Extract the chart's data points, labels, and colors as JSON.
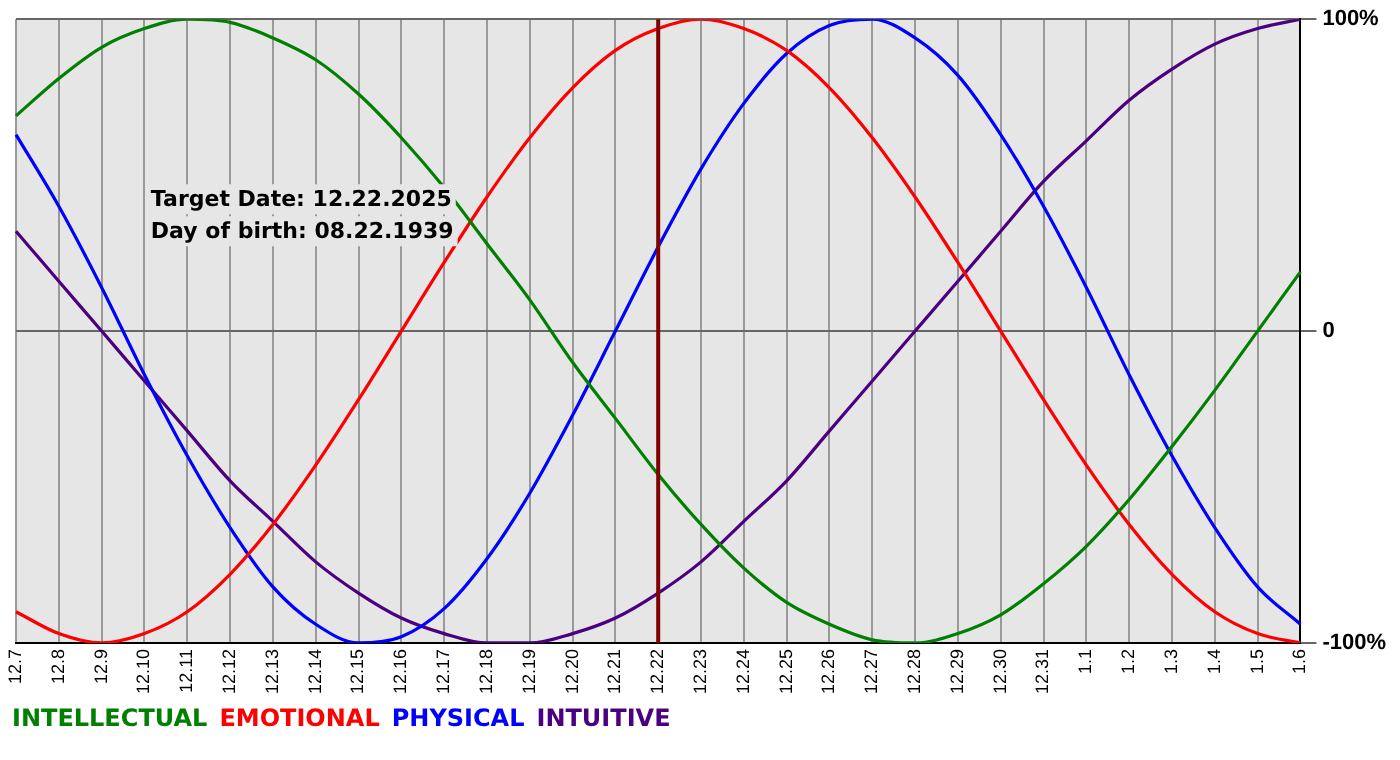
{
  "chart_data": {
    "type": "line",
    "categories": [
      "12.7",
      "12.8",
      "12.9",
      "12.10",
      "12.11",
      "12.12",
      "12.13",
      "12.14",
      "12.15",
      "12.16",
      "12.17",
      "12.18",
      "12.19",
      "12.20",
      "12.21",
      "12.22",
      "12.23",
      "12.24",
      "12.25",
      "12.26",
      "12.27",
      "12.28",
      "12.29",
      "12.30",
      "12.31",
      "1.1",
      "1.2",
      "1.3",
      "1.4",
      "1.5",
      "1.6"
    ],
    "series": [
      {
        "name": "INTELLECTUAL",
        "color": "#008000",
        "values": [
          69,
          81,
          91,
          97,
          100,
          99,
          94,
          87,
          76,
          62,
          46,
          28,
          10,
          -10,
          -28,
          -46,
          -62,
          -76,
          -87,
          -94,
          -99,
          -100,
          -97,
          -91,
          -81,
          -69,
          -54,
          -37,
          -19,
          0,
          19
        ]
      },
      {
        "name": "EMOTIONAL",
        "color": "#ff0000",
        "values": [
          -90,
          -97,
          -100,
          -97,
          -90,
          -78,
          -62,
          -43,
          -22,
          0,
          22,
          43,
          62,
          78,
          90,
          97,
          100,
          97,
          90,
          78,
          62,
          43,
          22,
          0,
          -22,
          -43,
          -62,
          -78,
          -90,
          -97,
          -100
        ]
      },
      {
        "name": "PHYSICAL",
        "color": "#0000ff",
        "values": [
          63,
          40,
          14,
          -14,
          -40,
          -63,
          -82,
          -94,
          -100,
          -98,
          -89,
          -73,
          -52,
          -27,
          0,
          27,
          52,
          73,
          89,
          98,
          100,
          94,
          82,
          63,
          40,
          14,
          -14,
          -40,
          -63,
          -82,
          -94
        ]
      },
      {
        "name": "INTUITIVE",
        "color": "#4b0082",
        "values": [
          32,
          16,
          0,
          -16,
          -32,
          -48,
          -61,
          -74,
          -84,
          -92,
          -97,
          -100,
          -100,
          -97,
          -92,
          -84,
          -74,
          -61,
          -48,
          -32,
          -16,
          0,
          16,
          32,
          48,
          61,
          74,
          84,
          92,
          97,
          100
        ]
      }
    ],
    "ylim": [
      -100,
      100
    ],
    "yticks": [
      {
        "value": 100,
        "label": "100%"
      },
      0,
      {
        "value": -100,
        "label": "-100%"
      }
    ],
    "ref_lines": [
      {
        "axis": "x",
        "value": "12.22",
        "color": "#800000"
      }
    ],
    "annotations": [
      "Target Date: 12.22.2025",
      "Day of birth: 08.22.1939"
    ],
    "grid": true,
    "legend": "bottom",
    "marker": "none",
    "line_style": "solid"
  }
}
